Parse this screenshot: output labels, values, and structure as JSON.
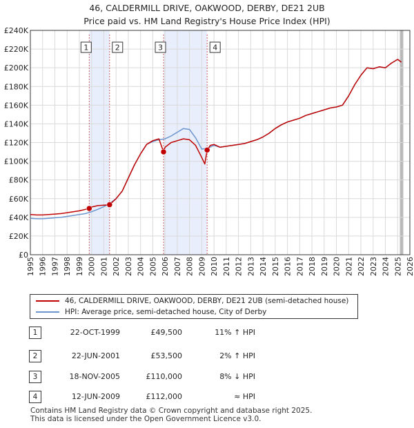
{
  "title_line1": "46, CALDERMILL DRIVE, OAKWOOD, DERBY, DE21 2UB",
  "title_line2": "Price paid vs. HM Land Registry's House Price Index (HPI)",
  "chart_data": {
    "type": "line",
    "title": "46, CALDERMILL DRIVE, OAKWOOD, DERBY, DE21 2UB — Price paid vs. HM Land Registry's House Price Index (HPI)",
    "xlim": [
      1995,
      2026
    ],
    "ylim": [
      0,
      240000
    ],
    "y_ticks": [
      0,
      20000,
      40000,
      60000,
      80000,
      100000,
      120000,
      140000,
      160000,
      180000,
      200000,
      220000,
      240000
    ],
    "y_tick_labels": [
      "£0",
      "£20K",
      "£40K",
      "£60K",
      "£80K",
      "£100K",
      "£120K",
      "£140K",
      "£160K",
      "£180K",
      "£200K",
      "£220K",
      "£240K"
    ],
    "x_ticks": [
      1995,
      1996,
      1997,
      1998,
      1999,
      2000,
      2001,
      2002,
      2003,
      2004,
      2005,
      2006,
      2007,
      2008,
      2009,
      2010,
      2011,
      2012,
      2013,
      2014,
      2015,
      2016,
      2017,
      2018,
      2019,
      2020,
      2021,
      2022,
      2023,
      2024,
      2025,
      2026
    ],
    "x_tick_labels": [
      "1995",
      "1996",
      "1997",
      "1998",
      "1999",
      "2000",
      "2001",
      "2002",
      "2003",
      "2004",
      "2005",
      "2006",
      "2007",
      "2008",
      "2009",
      "2010",
      "2011",
      "2012",
      "2013",
      "2014",
      "2015",
      "2016",
      "2017",
      "2018",
      "2019",
      "2020",
      "2021",
      "2022",
      "2023",
      "2024",
      "2025",
      "2026"
    ],
    "grid": true,
    "shaded_spans": [
      [
        1999.81,
        2001.47
      ],
      [
        2005.88,
        2009.44
      ]
    ],
    "forecast_start": 2025.2,
    "series": [
      {
        "name": "46, CALDERMILL DRIVE, OAKWOOD, DERBY, DE21 2UB (semi-detached house)",
        "color": "#c00000",
        "x": [
          1995.0,
          1995.5,
          1996.0,
          1996.5,
          1997.0,
          1997.5,
          1998.0,
          1998.5,
          1999.0,
          1999.5,
          1999.81,
          2000.0,
          2000.5,
          2001.0,
          2001.47,
          2002.0,
          2002.5,
          2003.0,
          2003.5,
          2004.0,
          2004.5,
          2005.0,
          2005.5,
          2005.88,
          2006.0,
          2006.5,
          2007.0,
          2007.5,
          2008.0,
          2008.5,
          2009.0,
          2009.25,
          2009.44,
          2009.7,
          2010.0,
          2010.5,
          2011.0,
          2011.5,
          2012.0,
          2012.5,
          2013.0,
          2013.5,
          2014.0,
          2014.5,
          2015.0,
          2015.5,
          2016.0,
          2016.5,
          2017.0,
          2017.5,
          2018.0,
          2018.5,
          2019.0,
          2019.5,
          2020.0,
          2020.5,
          2021.0,
          2021.5,
          2022.0,
          2022.5,
          2023.0,
          2023.5,
          2024.0,
          2024.5,
          2025.0,
          2025.3
        ],
        "values": [
          43000,
          42500,
          42500,
          43000,
          43500,
          44000,
          45000,
          46000,
          47000,
          48500,
          49500,
          51000,
          52500,
          53000,
          53500,
          60000,
          68000,
          82000,
          96000,
          108000,
          118000,
          122000,
          124000,
          110000,
          115000,
          120000,
          122000,
          124000,
          123000,
          117000,
          104000,
          97000,
          112000,
          117000,
          118000,
          115000,
          116000,
          117000,
          118000,
          119000,
          121000,
          123000,
          126000,
          130000,
          135000,
          139000,
          142000,
          144000,
          146000,
          149000,
          151000,
          153000,
          155000,
          157000,
          158000,
          160000,
          170000,
          182000,
          192000,
          200000,
          199000,
          201000,
          200000,
          205000,
          209000,
          206000
        ]
      },
      {
        "name": "HPI: Average price, semi-detached house, City of Derby",
        "color": "#6b95cf",
        "x": [
          1995.0,
          1995.5,
          1996.0,
          1996.5,
          1997.0,
          1997.5,
          1998.0,
          1998.5,
          1999.0,
          1999.5,
          2000.0,
          2000.5,
          2001.0,
          2001.5,
          2002.0,
          2002.5,
          2003.0,
          2003.5,
          2004.0,
          2004.5,
          2005.0,
          2005.5,
          2006.0,
          2006.5,
          2007.0,
          2007.5,
          2008.0,
          2008.5,
          2009.0,
          2009.5,
          2010.0,
          2010.5,
          2011.0,
          2011.5,
          2012.0,
          2012.5,
          2013.0,
          2013.5,
          2014.0,
          2014.5,
          2015.0,
          2015.5,
          2016.0,
          2016.5,
          2017.0,
          2017.5,
          2018.0,
          2018.5,
          2019.0,
          2019.5,
          2020.0,
          2020.5,
          2021.0,
          2021.5,
          2022.0,
          2022.5,
          2023.0,
          2023.5,
          2024.0,
          2024.5,
          2025.0,
          2025.3
        ],
        "values": [
          39000,
          38500,
          38500,
          39000,
          39500,
          40000,
          41000,
          42000,
          43000,
          44000,
          46000,
          48500,
          51500,
          55000,
          60000,
          68000,
          82000,
          96000,
          108000,
          118000,
          121000,
          123000,
          124000,
          127000,
          131000,
          135000,
          134000,
          125000,
          113000,
          114000,
          117000,
          115000,
          116000,
          117000,
          118000,
          119000,
          121000,
          123000,
          126000,
          130000,
          135000,
          139000,
          142000,
          144000,
          146000,
          149000,
          151000,
          153000,
          155000,
          157000,
          158000,
          160000,
          170000,
          182000,
          192000,
          200000,
          199000,
          201000,
          200000,
          205000,
          209000,
          206000
        ]
      }
    ],
    "sale_markers": [
      {
        "label": "1",
        "x": 1999.81,
        "value": 49500
      },
      {
        "label": "2",
        "x": 2001.47,
        "value": 53500
      },
      {
        "label": "3",
        "x": 2005.88,
        "value": 110000
      },
      {
        "label": "4",
        "x": 2009.44,
        "value": 112000
      }
    ]
  },
  "legend": {
    "property_label": "46, CALDERMILL DRIVE, OAKWOOD, DERBY, DE21 2UB (semi-detached house)",
    "hpi_label": "HPI: Average price, semi-detached house, City of Derby"
  },
  "sales": [
    {
      "num": "1",
      "date": "22-OCT-1999",
      "price": "£49,500",
      "hpi": "11% ↑ HPI"
    },
    {
      "num": "2",
      "date": "22-JUN-2001",
      "price": "£53,500",
      "hpi": "2% ↑ HPI"
    },
    {
      "num": "3",
      "date": "18-NOV-2005",
      "price": "£110,000",
      "hpi": "8% ↓ HPI"
    },
    {
      "num": "4",
      "date": "12-JUN-2009",
      "price": "£112,000",
      "hpi": "≈ HPI"
    }
  ],
  "footer_line1": "Contains HM Land Registry data © Crown copyright and database right 2025.",
  "footer_line2": "This data is licensed under the Open Government Licence v3.0.",
  "colors": {
    "property": "#c00000",
    "hpi": "#6b95cf",
    "shade": "#e8eefb",
    "grid": "#d9d9d9"
  }
}
